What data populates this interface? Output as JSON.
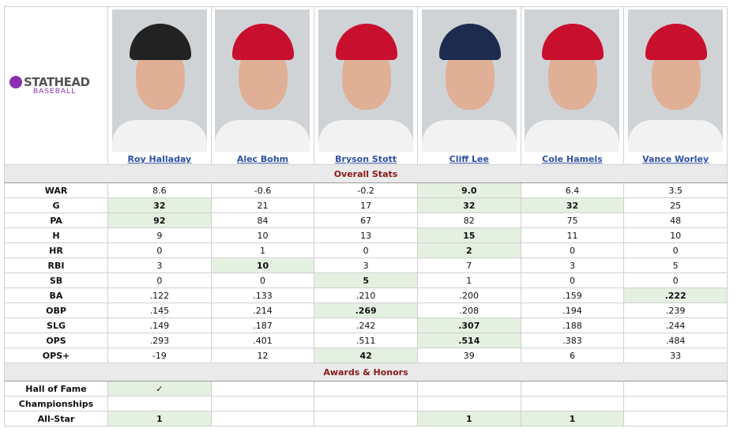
{
  "logo": {
    "brand": "STATHEAD",
    "sub": "BASEBALL"
  },
  "players": [
    "Roy Halladay",
    "Alec Bohm",
    "Bryson Stott",
    "Cliff Lee",
    "Cole Hamels",
    "Vance Worley"
  ],
  "sections": [
    {
      "title": "Overall Stats",
      "rows": [
        {
          "label": "WAR",
          "values": [
            "8.6",
            "-0.6",
            "-0.2",
            "9.0",
            "6.4",
            "3.5"
          ],
          "leaders": [
            3
          ]
        },
        {
          "label": "G",
          "values": [
            "32",
            "21",
            "17",
            "32",
            "32",
            "25"
          ],
          "leaders": [
            0,
            3,
            4
          ]
        },
        {
          "label": "PA",
          "values": [
            "92",
            "84",
            "67",
            "82",
            "75",
            "48"
          ],
          "leaders": [
            0
          ]
        },
        {
          "label": "H",
          "values": [
            "9",
            "10",
            "13",
            "15",
            "11",
            "10"
          ],
          "leaders": [
            3
          ]
        },
        {
          "label": "HR",
          "values": [
            "0",
            "1",
            "0",
            "2",
            "0",
            "0"
          ],
          "leaders": [
            3
          ]
        },
        {
          "label": "RBI",
          "values": [
            "3",
            "10",
            "3",
            "7",
            "3",
            "5"
          ],
          "leaders": [
            1
          ]
        },
        {
          "label": "SB",
          "values": [
            "0",
            "0",
            "5",
            "1",
            "0",
            "0"
          ],
          "leaders": [
            2
          ]
        },
        {
          "label": "BA",
          "values": [
            ".122",
            ".133",
            ".210",
            ".200",
            ".159",
            ".222"
          ],
          "leaders": [
            5
          ]
        },
        {
          "label": "OBP",
          "values": [
            ".145",
            ".214",
            ".269",
            ".208",
            ".194",
            ".239"
          ],
          "leaders": [
            2
          ]
        },
        {
          "label": "SLG",
          "values": [
            ".149",
            ".187",
            ".242",
            ".307",
            ".188",
            ".244"
          ],
          "leaders": [
            3
          ]
        },
        {
          "label": "OPS",
          "values": [
            ".293",
            ".401",
            ".511",
            ".514",
            ".383",
            ".484"
          ],
          "leaders": [
            3
          ]
        },
        {
          "label": "OPS+",
          "values": [
            "-19",
            "12",
            "42",
            "39",
            "6",
            "33"
          ],
          "leaders": [
            2
          ]
        }
      ]
    },
    {
      "title": "Awards & Honors",
      "rows": [
        {
          "label": "Hall of Fame",
          "values": [
            "✓",
            null,
            null,
            null,
            null,
            null
          ],
          "leaders": [
            0
          ]
        },
        {
          "label": "Championships",
          "values": [
            null,
            null,
            null,
            null,
            null,
            null
          ],
          "leaders": []
        },
        {
          "label": "All-Star",
          "values": [
            "1",
            null,
            null,
            "1",
            "1",
            null
          ],
          "leaders": [
            0,
            3,
            4
          ]
        }
      ]
    }
  ]
}
